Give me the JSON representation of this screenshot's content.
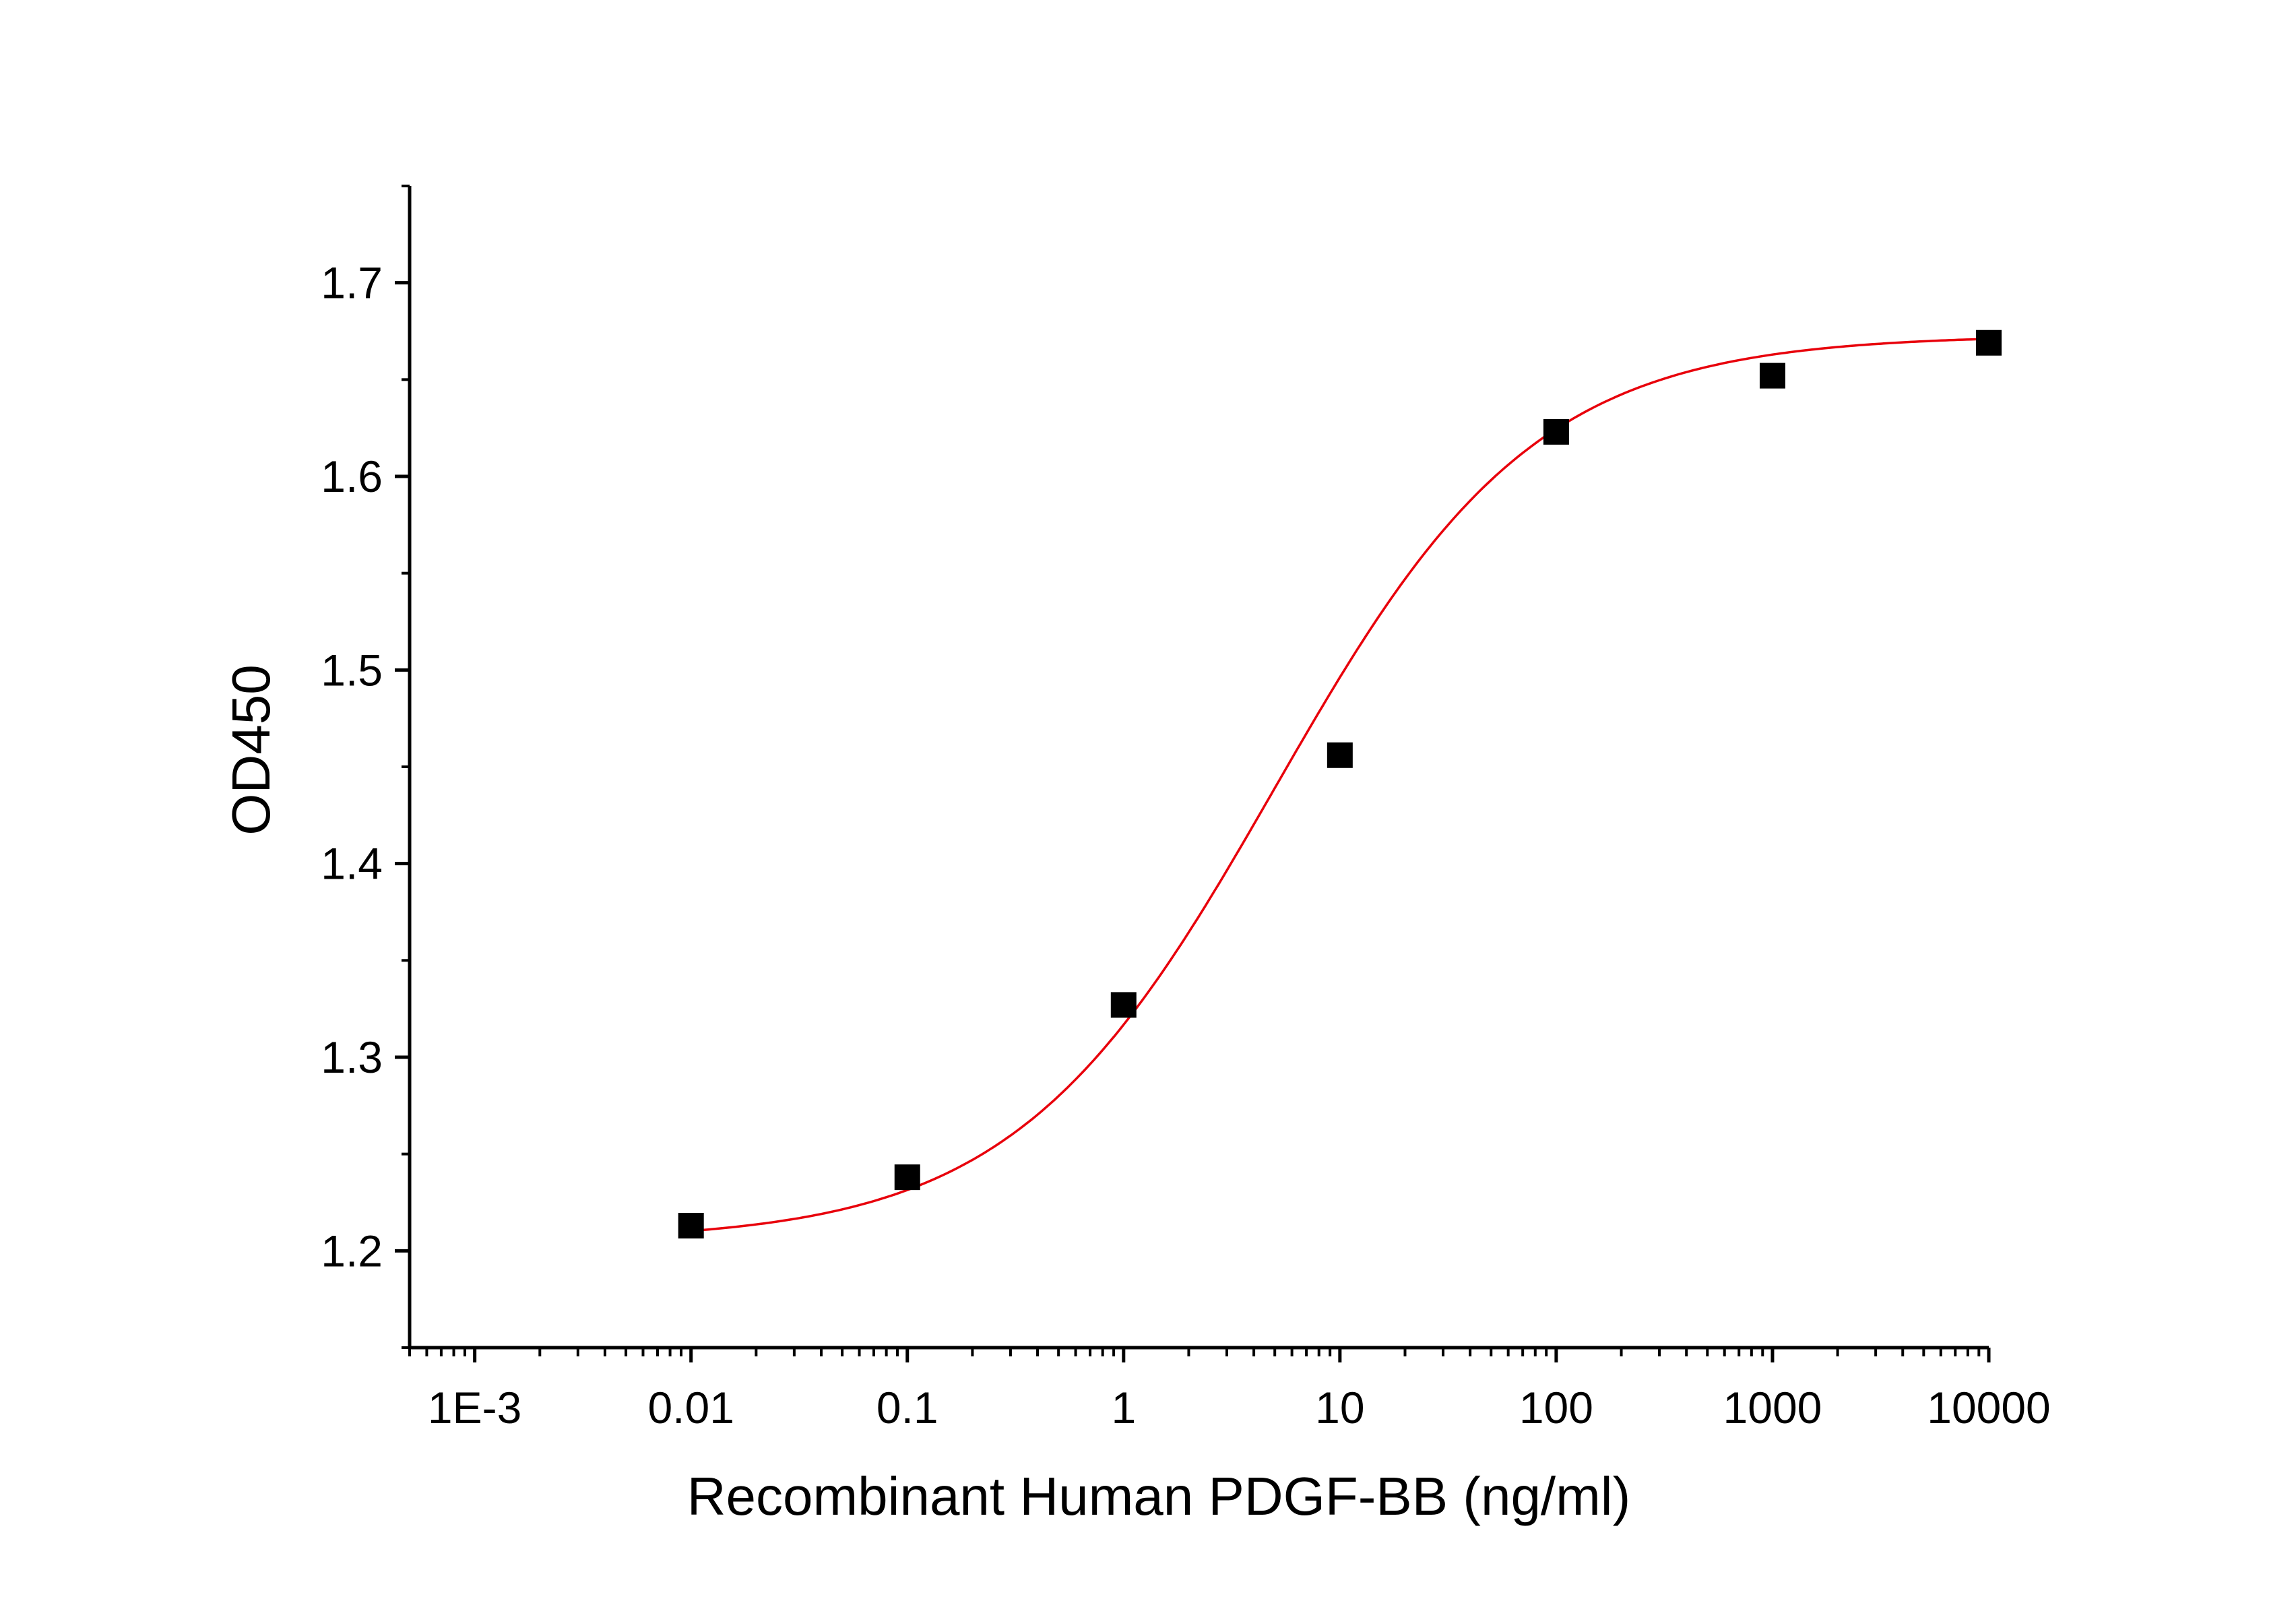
{
  "chart_data": {
    "type": "scatter",
    "title": "",
    "xlabel": "Recombinant Human PDGF-BB (ng/ml)",
    "ylabel": "OD450",
    "x_scale": "log",
    "xlim": [
      0.0005,
      10000
    ],
    "ylim": [
      1.15,
      1.75
    ],
    "x_ticks": [
      {
        "value": 0.001,
        "label": "1E-3"
      },
      {
        "value": 0.01,
        "label": "0.01"
      },
      {
        "value": 0.1,
        "label": "0.1"
      },
      {
        "value": 1,
        "label": "1"
      },
      {
        "value": 10,
        "label": "10"
      },
      {
        "value": 100,
        "label": "100"
      },
      {
        "value": 1000,
        "label": "1000"
      },
      {
        "value": 10000,
        "label": "10000"
      }
    ],
    "y_ticks": [
      {
        "value": 1.2,
        "label": "1.2"
      },
      {
        "value": 1.3,
        "label": "1.3"
      },
      {
        "value": 1.4,
        "label": "1.4"
      },
      {
        "value": 1.5,
        "label": "1.5"
      },
      {
        "value": 1.6,
        "label": "1.6"
      },
      {
        "value": 1.7,
        "label": "1.7"
      }
    ],
    "grid": false,
    "legend": "none",
    "series": [
      {
        "marker": "square",
        "color": "#000000",
        "x": [
          0.01,
          0.1,
          1,
          10,
          100,
          1000,
          10000
        ],
        "y": [
          1.213,
          1.238,
          1.327,
          1.456,
          1.623,
          1.652,
          1.669
        ]
      }
    ],
    "fit_curve": {
      "type": "4PL",
      "color": "#e8000b",
      "bottom": 1.205,
      "top": 1.673,
      "ec50": 5,
      "hill": 0.72,
      "x_range": [
        0.01,
        10000
      ]
    }
  }
}
